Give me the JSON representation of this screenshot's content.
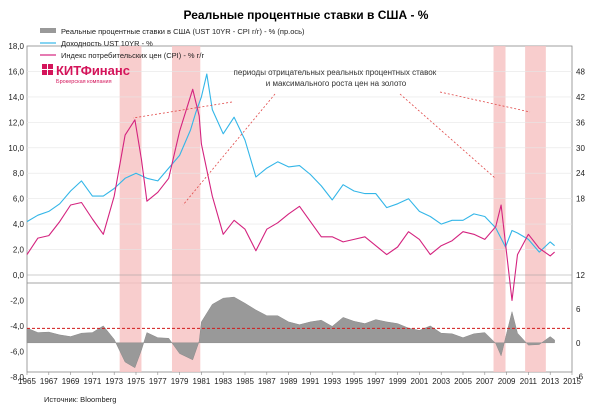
{
  "chart_data": {
    "type": "line",
    "title": "Реальные процентные ставки в США - %",
    "source": "Источник: Bloomberg",
    "logo": {
      "name": "КИТФинанс",
      "subtitle": "Брокерская компания"
    },
    "annotation": "периоды отрицательных реальных процентных ставок\nи максимального роста цен на золото",
    "legend": [
      {
        "label": "Реальные процентные ставки в США (UST 10YR - CPI г/г) - % (пр.ось)",
        "color": "#999999",
        "kind": "area"
      },
      {
        "label": "Доходность UST 10YR - %",
        "color": "#33b6e8",
        "kind": "line"
      },
      {
        "label": "Индекс потребительских цен (CPI) - % г/г",
        "color": "#d4237f",
        "kind": "line"
      }
    ],
    "x_ticks": [
      "1965",
      "1967",
      "1969",
      "1971",
      "1973",
      "1975",
      "1977",
      "1979",
      "1981",
      "1983",
      "1985",
      "1987",
      "1989",
      "1991",
      "1993",
      "1995",
      "1997",
      "1999",
      "2001",
      "2003",
      "2005",
      "2007",
      "2009",
      "2011",
      "2013",
      "2015"
    ],
    "xlim": [
      1965,
      2015
    ],
    "left_ticks": [
      "18,0",
      "16,0",
      "14,0",
      "12,0",
      "10,0",
      "8,0",
      "6,0",
      "4,0",
      "2,0",
      "0,0",
      "-2,0",
      "-4,0",
      "-6,0",
      "-8,0"
    ],
    "right_ticks": [
      "48",
      "42",
      "36",
      "30",
      "24",
      "18",
      "12",
      "6",
      "0",
      "-6"
    ],
    "ylim_left": [
      -8,
      18
    ],
    "highlight_periods": [
      [
        1973.5,
        1975.5
      ],
      [
        1978.3,
        1980.9
      ],
      [
        2007.8,
        2008.9
      ],
      [
        2010.7,
        2012.6
      ]
    ],
    "reference_level": -4.2,
    "series": [
      {
        "name": "Доходность UST 10YR - %",
        "x": [
          1965,
          1966,
          1967,
          1968,
          1969,
          1970,
          1971,
          1972,
          1973,
          1974,
          1975,
          1976,
          1977,
          1978,
          1979,
          1980,
          1980.5,
          1981,
          1981.5,
          1982,
          1983,
          1984,
          1985,
          1986,
          1987,
          1988,
          1989,
          1990,
          1991,
          1992,
          1993,
          1994,
          1995,
          1996,
          1997,
          1998,
          1999,
          2000,
          2001,
          2002,
          2003,
          2004,
          2005,
          2006,
          2007,
          2008,
          2008.9,
          2009.5,
          2010,
          2011,
          2012,
          2013,
          2013.4
        ],
        "values": [
          4.2,
          4.7,
          5.0,
          5.6,
          6.6,
          7.4,
          6.2,
          6.2,
          6.8,
          7.6,
          8.0,
          7.6,
          7.4,
          8.4,
          9.4,
          11.4,
          12.8,
          14.0,
          15.8,
          13.0,
          11.1,
          12.4,
          10.6,
          7.7,
          8.4,
          8.9,
          8.5,
          8.6,
          7.9,
          7.0,
          5.9,
          7.1,
          6.6,
          6.4,
          6.4,
          5.3,
          5.6,
          6.0,
          5.0,
          4.6,
          4.0,
          4.3,
          4.3,
          4.8,
          4.6,
          3.7,
          2.2,
          3.5,
          3.3,
          2.8,
          1.8,
          2.6,
          2.3
        ]
      },
      {
        "name": "Индекс потребительских цен (CPI) - % г/г",
        "x": [
          1965,
          1966,
          1967,
          1968,
          1969,
          1970,
          1971,
          1972,
          1973,
          1974,
          1974.9,
          1975.5,
          1976,
          1977,
          1978,
          1979,
          1980.2,
          1980.8,
          1981,
          1982,
          1983,
          1984,
          1985,
          1986,
          1987,
          1988,
          1989,
          1990,
          1991,
          1992,
          1993,
          1994,
          1995,
          1996,
          1997,
          1998,
          1999,
          2000,
          2001,
          2002,
          2003,
          2004,
          2005,
          2006,
          2007,
          2008,
          2008.5,
          2009.5,
          2010,
          2011,
          2012,
          2013,
          2013.4
        ],
        "values": [
          1.6,
          2.9,
          3.1,
          4.2,
          5.5,
          5.7,
          4.4,
          3.2,
          6.2,
          11.0,
          12.2,
          9.1,
          5.8,
          6.5,
          7.6,
          11.3,
          14.6,
          12.5,
          10.3,
          6.2,
          3.2,
          4.3,
          3.6,
          1.9,
          3.6,
          4.1,
          4.8,
          5.4,
          4.2,
          3.0,
          3.0,
          2.6,
          2.8,
          3.0,
          2.3,
          1.6,
          2.2,
          3.4,
          2.8,
          1.6,
          2.3,
          2.7,
          3.4,
          3.2,
          2.8,
          3.8,
          5.5,
          -2.0,
          1.6,
          3.2,
          2.1,
          1.5,
          1.8
        ]
      },
      {
        "name": "Реальные процентные ставки в США (UST 10YR - CPI г/г) - % (пр.ось)",
        "x": [
          1965,
          1966,
          1967,
          1968,
          1969,
          1970,
          1971,
          1972,
          1973,
          1974,
          1974.9,
          1975.5,
          1976,
          1977,
          1978,
          1979,
          1980.2,
          1980.8,
          1981,
          1982,
          1983,
          1984,
          1985,
          1986,
          1987,
          1988,
          1989,
          1990,
          1991,
          1992,
          1993,
          1994,
          1995,
          1996,
          1997,
          1998,
          1999,
          2000,
          2001,
          2002,
          2003,
          2004,
          2005,
          2006,
          2007,
          2008,
          2008.5,
          2009.5,
          2010,
          2011,
          2012,
          2013,
          2013.4
        ],
        "values": [
          2.6,
          1.8,
          1.9,
          1.4,
          1.1,
          1.7,
          1.8,
          3.0,
          0.6,
          -3.4,
          -4.4,
          -1.3,
          1.8,
          0.9,
          0.8,
          -1.9,
          -3.0,
          0.3,
          3.7,
          6.8,
          7.9,
          8.1,
          7.0,
          5.8,
          4.8,
          4.8,
          3.7,
          3.2,
          3.7,
          4.0,
          2.9,
          4.5,
          3.8,
          3.4,
          4.1,
          3.7,
          3.4,
          2.6,
          2.2,
          3.0,
          1.7,
          1.6,
          0.9,
          1.6,
          1.8,
          -0.1,
          -2.3,
          5.5,
          1.7,
          -0.4,
          -0.3,
          1.1,
          0.5
        ]
      }
    ]
  }
}
